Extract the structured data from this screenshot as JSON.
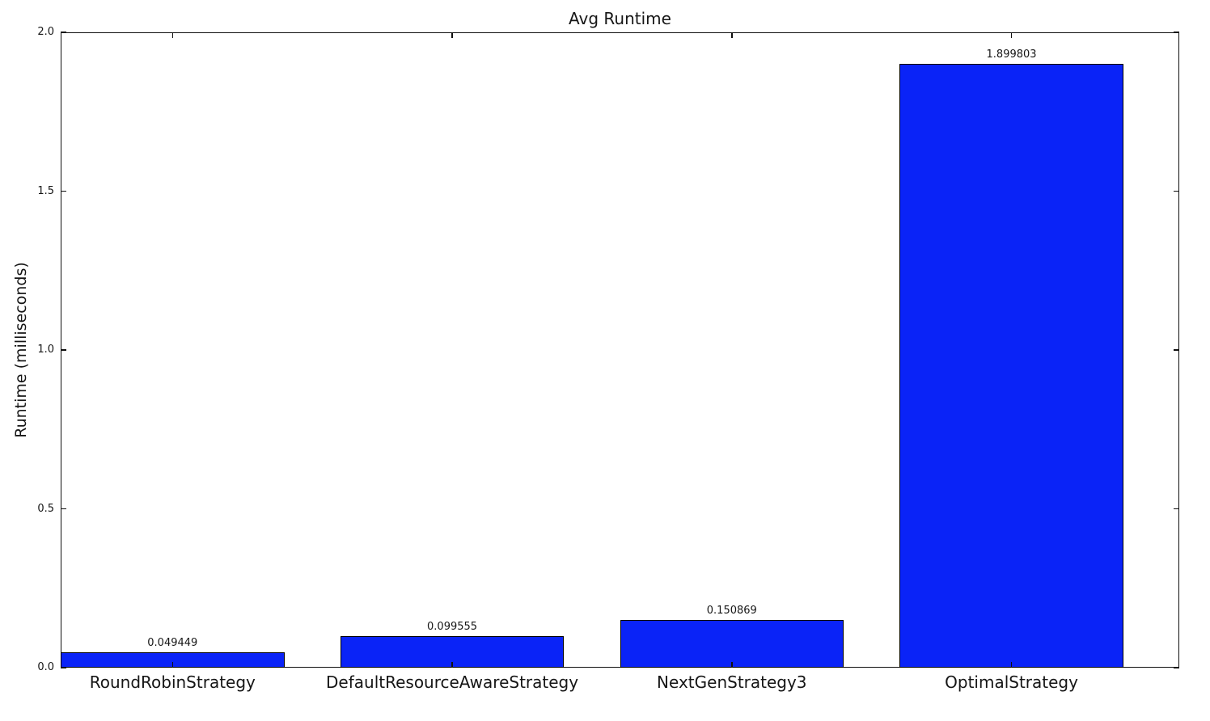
{
  "chart_data": {
    "type": "bar",
    "title": "Avg Runtime",
    "xlabel": "",
    "ylabel": "Runtime (milliseconds)",
    "categories": [
      "RoundRobinStrategy",
      "DefaultResourceAwareStrategy",
      "NextGenStrategy3",
      "OptimalStrategy"
    ],
    "values": [
      0.049449,
      0.099555,
      0.150869,
      1.899803
    ],
    "bar_labels": [
      "0.049449",
      "0.099555",
      "0.150869",
      "1.899803"
    ],
    "ylim": [
      0.0,
      2.0
    ],
    "yticks": [
      "0.0",
      "0.5",
      "1.0",
      "1.5",
      "2.0"
    ],
    "grid": false,
    "legend_position": "none",
    "bar_color": "#0a23f7",
    "bar_edge_color": "#000000",
    "axis_color": "#0f0f0f",
    "text_color": "#161616",
    "background_color": "#ffffff",
    "bar_width_fraction": 0.8,
    "tick_direction": "in"
  }
}
